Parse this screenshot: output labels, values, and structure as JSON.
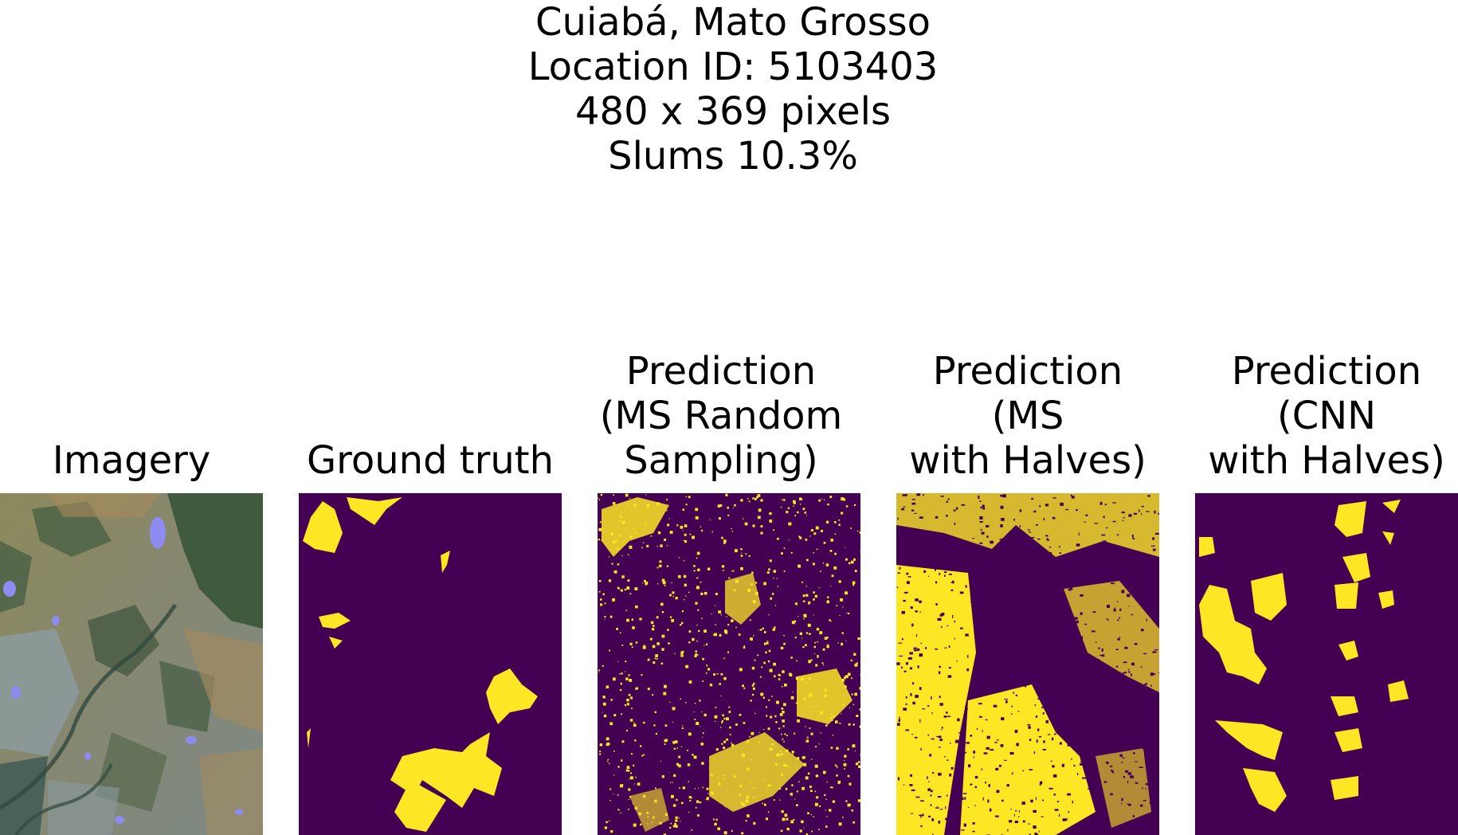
{
  "header": {
    "location": "Cuiabá, Mato Grosso",
    "location_id": "Location ID: 5103403",
    "size": "480 x 369 pixels",
    "slums": "Slums 10.3%"
  },
  "panels": [
    {
      "title_lines": [
        "Imagery"
      ]
    },
    {
      "title_lines": [
        "Ground truth"
      ]
    },
    {
      "title_lines": [
        "Prediction",
        "(MS Random",
        "Sampling)"
      ]
    },
    {
      "title_lines": [
        "Prediction",
        "(MS",
        "with Halves)"
      ]
    },
    {
      "title_lines": [
        "Prediction",
        "(CNN",
        "with Halves)"
      ]
    }
  ],
  "colors": {
    "mask_background": "#440154",
    "mask_foreground": "#fde725",
    "imagery_base": "#7d7a55"
  }
}
